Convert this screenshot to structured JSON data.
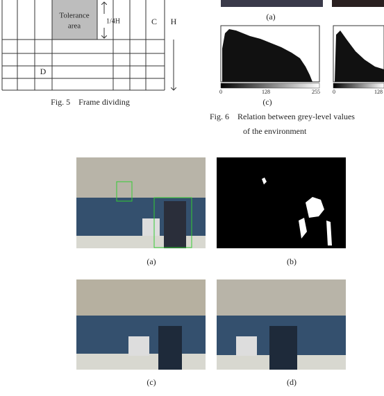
{
  "fig5": {
    "tolerance_label": [
      "Tolerance",
      "area"
    ],
    "height_fraction": "1/4H",
    "region_c": "C",
    "height": "H",
    "region_d": "D",
    "caption": "Fig. 5    Frame dividing"
  },
  "fig6": {
    "panel_a": "(a)",
    "panel_c": "(c)",
    "hist_left_ticks": [
      0,
      128,
      255
    ],
    "hist_right_ticks": [
      0,
      128
    ],
    "caption_line1": "Fig. 6    Relation between grey-level values",
    "caption_line2": "of the environment"
  },
  "fig7": {
    "panels": [
      "(a)",
      "(b)",
      "(c)",
      "(d)"
    ]
  }
}
